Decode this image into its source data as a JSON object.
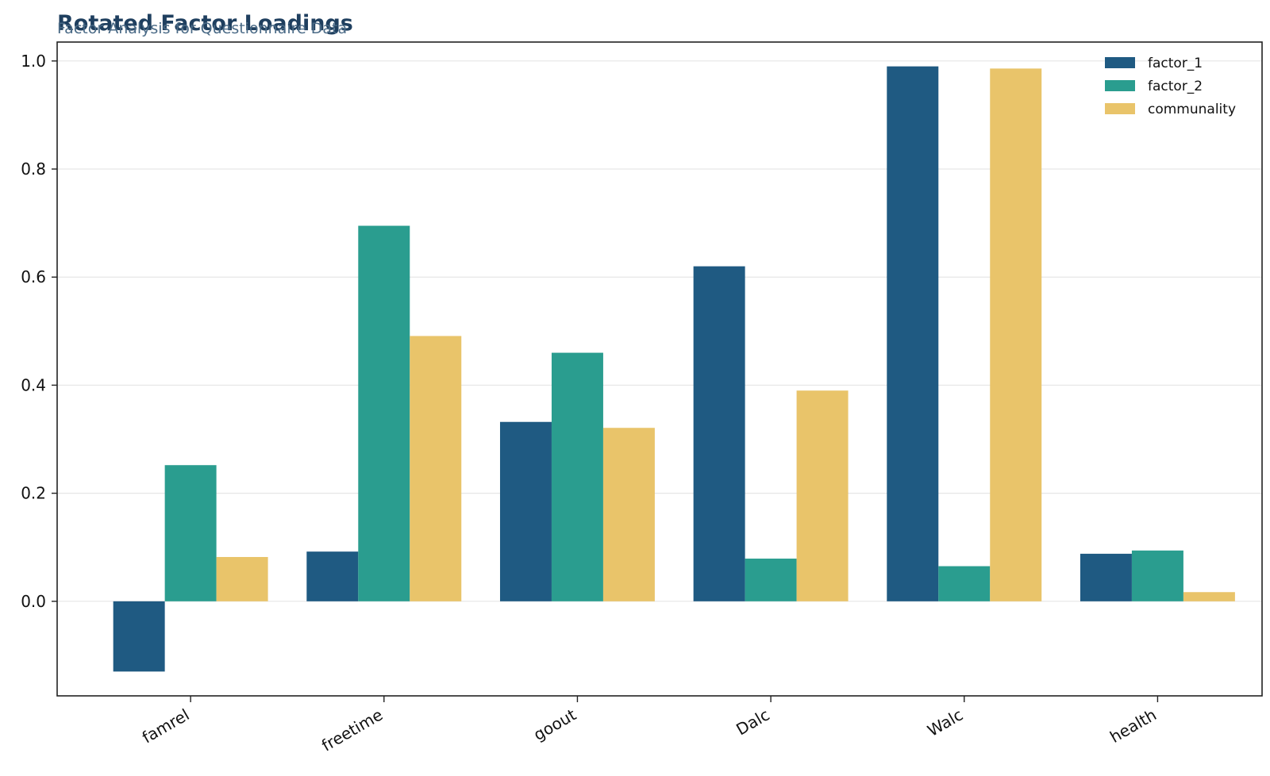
{
  "chart_data": {
    "type": "bar",
    "title": "Rotated Factor Loadings",
    "subtitle": "Factor Analysis for Questionnaire Data",
    "xlabel": "",
    "ylabel": "",
    "categories": [
      "famrel",
      "freetime",
      "goout",
      "Dalc",
      "Walc",
      "health"
    ],
    "series": [
      {
        "name": "factor_1",
        "color": "#1f5a82",
        "values": [
          -0.13,
          0.092,
          0.332,
          0.62,
          0.99,
          0.088
        ]
      },
      {
        "name": "factor_2",
        "color": "#2a9d8f",
        "values": [
          0.252,
          0.695,
          0.46,
          0.079,
          0.065,
          0.094
        ]
      },
      {
        "name": "communality",
        "color": "#e9c46a",
        "values": [
          0.082,
          0.491,
          0.321,
          0.39,
          0.986,
          0.017
        ]
      }
    ],
    "ylim": [
      -0.175,
      1.035
    ],
    "yticks": [
      0.0,
      0.2,
      0.4,
      0.6,
      0.8,
      1.0
    ],
    "ytick_labels": [
      "0.0",
      "0.2",
      "0.4",
      "0.6",
      "0.8",
      "1.0"
    ],
    "grid": "horizontal",
    "legend_position": "top-right"
  }
}
